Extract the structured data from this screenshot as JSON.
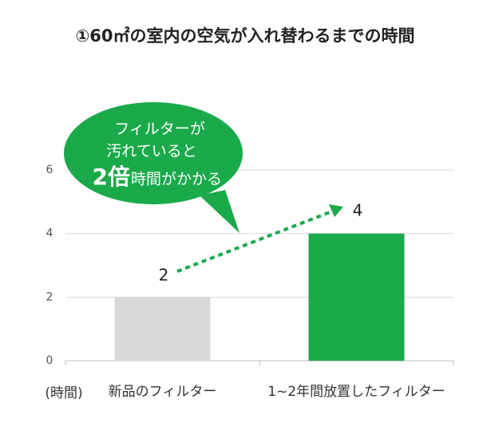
{
  "chart_data": {
    "type": "bar",
    "title": "①60㎡の室内の空気が入れ替わるまでの時間",
    "ylabel": "(時間)",
    "categories": [
      "新品のフィルター",
      "1~2年間放置したフィルター"
    ],
    "values": [
      2,
      4
    ],
    "colors": [
      "#d9d9d9",
      "#1aaa4a"
    ],
    "ylim": [
      0,
      6
    ],
    "yticks": [
      0,
      2,
      4,
      6
    ],
    "grid": true,
    "annotation_lines": [
      "フィルターが",
      "汚れていると"
    ],
    "annotation_emphasis": "2倍",
    "annotation_tail": "時間がかかる"
  }
}
